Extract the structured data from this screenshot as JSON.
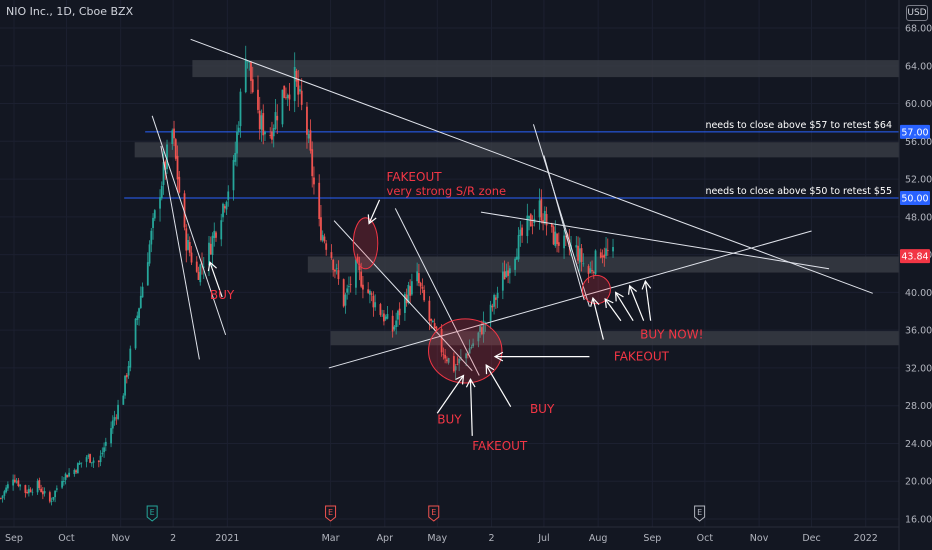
{
  "header": {
    "title": "NIO Inc., 1D, Cboe BZX",
    "currency": "USD"
  },
  "chart_data": {
    "type": "candlestick",
    "symbol": "NIO Inc.",
    "interval": "1D",
    "exchange": "Cboe BZX",
    "ylim": [
      15,
      69
    ],
    "y_ticks": [
      16,
      20,
      24,
      28,
      32,
      36,
      40,
      44,
      48,
      52,
      56,
      60,
      64,
      68
    ],
    "y_tick_labels": [
      "16.00",
      "20.00",
      "24.00",
      "28.00",
      "32.00",
      "36.00",
      "40.00",
      "44.00",
      "48.00",
      "52.00",
      "56.00",
      "60.00",
      "64.00",
      "68.00"
    ],
    "x_range": [
      "2020-08-24",
      "2022-01-20"
    ],
    "x_ticks": [
      {
        "date": "2020-09-01",
        "label": "Sep"
      },
      {
        "date": "2020-10-01",
        "label": "Oct"
      },
      {
        "date": "2020-11-01",
        "label": "Nov"
      },
      {
        "date": "2020-12-01",
        "label": "2"
      },
      {
        "date": "2021-01-01",
        "label": "2021"
      },
      {
        "date": "2021-03-01",
        "label": "Mar"
      },
      {
        "date": "2021-04-01",
        "label": "Apr"
      },
      {
        "date": "2021-05-01",
        "label": "May"
      },
      {
        "date": "2021-06-01",
        "label": "2"
      },
      {
        "date": "2021-07-01",
        "label": "Jul"
      },
      {
        "date": "2021-08-01",
        "label": "Aug"
      },
      {
        "date": "2021-09-01",
        "label": "Sep"
      },
      {
        "date": "2021-10-01",
        "label": "Oct"
      },
      {
        "date": "2021-11-01",
        "label": "Nov"
      },
      {
        "date": "2021-12-01",
        "label": "Dec"
      },
      {
        "date": "2022-01-01",
        "label": "2022"
      }
    ],
    "last_price": {
      "value": 43.84,
      "label": "43.84",
      "color": "#f23645"
    },
    "price_series": [
      [
        "2020-08-24",
        18.2
      ],
      [
        "2020-08-31",
        20.5
      ],
      [
        "2020-09-07",
        18.9
      ],
      [
        "2020-09-14",
        19.6
      ],
      [
        "2020-09-21",
        17.8
      ],
      [
        "2020-09-28",
        20.4
      ],
      [
        "2020-10-05",
        21.2
      ],
      [
        "2020-10-12",
        22.6
      ],
      [
        "2020-10-19",
        22.0
      ],
      [
        "2020-10-26",
        25.7
      ],
      [
        "2020-11-02",
        29.5
      ],
      [
        "2020-11-09",
        36.5
      ],
      [
        "2020-11-16",
        44.0
      ],
      [
        "2020-11-23",
        51.0
      ],
      [
        "2020-11-30",
        57.0
      ],
      [
        "2020-12-07",
        46.0
      ],
      [
        "2020-12-14",
        42.0
      ],
      [
        "2020-12-21",
        44.5
      ],
      [
        "2020-12-28",
        48.7
      ],
      [
        "2021-01-04",
        53.0
      ],
      [
        "2021-01-11",
        66.0
      ],
      [
        "2021-01-18",
        58.0
      ],
      [
        "2021-01-25",
        57.0
      ],
      [
        "2021-02-01",
        61.0
      ],
      [
        "2021-02-08",
        62.5
      ],
      [
        "2021-02-15",
        57.0
      ],
      [
        "2021-02-22",
        47.0
      ],
      [
        "2021-03-01",
        44.0
      ],
      [
        "2021-03-08",
        39.0
      ],
      [
        "2021-03-15",
        42.5
      ],
      [
        "2021-03-22",
        40.0
      ],
      [
        "2021-03-29",
        38.0
      ],
      [
        "2021-04-05",
        36.0
      ],
      [
        "2021-04-12",
        39.5
      ],
      [
        "2021-04-19",
        41.5
      ],
      [
        "2021-04-26",
        37.0
      ],
      [
        "2021-05-03",
        34.0
      ],
      [
        "2021-05-10",
        32.0
      ],
      [
        "2021-05-17",
        33.5
      ],
      [
        "2021-05-24",
        35.5
      ],
      [
        "2021-05-31",
        38.0
      ],
      [
        "2021-06-07",
        41.5
      ],
      [
        "2021-06-14",
        44.5
      ],
      [
        "2021-06-21",
        47.0
      ],
      [
        "2021-06-28",
        49.0
      ],
      [
        "2021-07-05",
        46.0
      ],
      [
        "2021-07-12",
        45.0
      ],
      [
        "2021-07-19",
        44.5
      ],
      [
        "2021-07-26",
        42.0
      ],
      [
        "2021-08-02",
        44.5
      ],
      [
        "2021-08-09",
        43.84
      ]
    ],
    "price_lines": [
      {
        "value": 57.0,
        "label": "57.00",
        "color": "#2962ff",
        "annotation": "needs to close above $57 to retest $64"
      },
      {
        "value": 50.0,
        "label": "50.00",
        "color": "#2962ff",
        "annotation": "needs to close above $50 to retest $55"
      }
    ],
    "zones": [
      {
        "from": "2020-12-12",
        "to": "2022-01-20",
        "low": 62.8,
        "high": 64.6
      },
      {
        "from": "2020-11-09",
        "to": "2022-01-20",
        "low": 54.3,
        "high": 55.9
      },
      {
        "from": "2021-02-16",
        "to": "2022-01-20",
        "low": 42.1,
        "high": 43.8
      },
      {
        "from": "2021-03-01",
        "to": "2022-01-20",
        "low": 34.4,
        "high": 35.9
      }
    ],
    "trendlines": [
      {
        "from": [
          "2020-12-11",
          66.8
        ],
        "to": [
          "2022-01-05",
          39.9
        ]
      },
      {
        "from": [
          "2021-02-28",
          32.0
        ],
        "to": [
          "2021-12-01",
          46.5
        ]
      },
      {
        "from": [
          "2021-05-26",
          48.5
        ],
        "to": [
          "2021-12-11",
          42.5
        ]
      },
      {
        "from": [
          "2020-11-24",
          55.5
        ],
        "to": [
          "2020-12-16",
          32.9
        ]
      },
      {
        "from": [
          "2020-11-19",
          58.7
        ],
        "to": [
          "2020-12-31",
          35.5
        ]
      },
      {
        "from": [
          "2021-03-03",
          47.6
        ],
        "to": [
          "2021-05-21",
          31.7
        ]
      },
      {
        "from": [
          "2021-04-07",
          48.9
        ],
        "to": [
          "2021-05-25",
          31.2
        ]
      },
      {
        "from": [
          "2021-06-25",
          57.8
        ],
        "to": [
          "2021-07-27",
          38.5
        ]
      },
      {
        "from": [
          "2021-07-01",
          54.5
        ],
        "to": [
          "2021-07-24",
          39.2
        ]
      }
    ],
    "ellipses": [
      {
        "center": [
          "2021-03-21",
          45.2
        ],
        "rx_days": 7,
        "ry": 2.7
      },
      {
        "center": [
          "2021-05-17",
          33.8
        ],
        "rx_days": 21,
        "ry": 3.4
      },
      {
        "center": [
          "2021-07-31",
          40.3
        ],
        "rx_days": 8,
        "ry": 1.5
      }
    ],
    "annotations": [
      {
        "text": "FAKEOUT",
        "at": [
          "2021-04-02",
          51.8
        ]
      },
      {
        "text": "very strong S/R zone",
        "at": [
          "2021-04-02",
          50.3
        ]
      },
      {
        "text": "BUY",
        "at": [
          "2020-12-22",
          39.3
        ]
      },
      {
        "text": "BUY",
        "at": [
          "2021-05-01",
          26.1
        ]
      },
      {
        "text": "FAKEOUT",
        "at": [
          "2021-05-21",
          23.3
        ]
      },
      {
        "text": "BUY",
        "at": [
          "2021-06-23",
          27.2
        ]
      },
      {
        "text": "FAKEOUT",
        "at": [
          "2021-08-10",
          32.8
        ]
      },
      {
        "text": "BUY NOW!",
        "at": [
          "2021-08-25",
          35.1
        ]
      }
    ],
    "events": [
      {
        "date": "2020-11-19",
        "label": "E"
      },
      {
        "date": "2021-03-01",
        "label": "E"
      },
      {
        "date": "2021-04-29",
        "label": "E"
      },
      {
        "date": "2021-09-28",
        "label": "E"
      }
    ]
  }
}
